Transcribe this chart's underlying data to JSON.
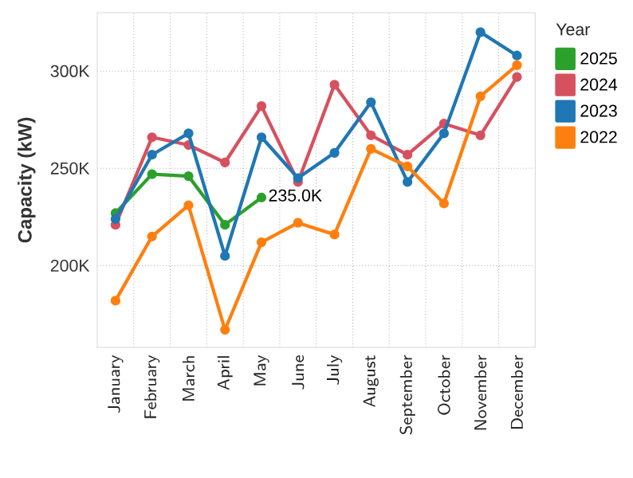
{
  "chart_data": {
    "type": "line",
    "ylabel": "Capacity (kW)",
    "legend_title": "Year",
    "categories": [
      "January",
      "February",
      "March",
      "April",
      "May",
      "June",
      "July",
      "August",
      "September",
      "October",
      "November",
      "December"
    ],
    "series": [
      {
        "name": "2025",
        "color": "#2ca02c",
        "values": [
          227000,
          247000,
          246000,
          221000,
          235000,
          null,
          null,
          null,
          null,
          null,
          null,
          null
        ],
        "value_labels": [
          null,
          null,
          null,
          null,
          "235.0K",
          null,
          null,
          null,
          null,
          null,
          null,
          null
        ]
      },
      {
        "name": "2024",
        "color": "#d6515f",
        "values": [
          221000,
          266000,
          262000,
          253000,
          282000,
          243000,
          293000,
          267000,
          257000,
          273000,
          267000,
          297000
        ]
      },
      {
        "name": "2023",
        "color": "#1f77b4",
        "values": [
          224000,
          257000,
          268000,
          205000,
          266000,
          245000,
          258000,
          284000,
          243000,
          268000,
          320000,
          308000
        ]
      },
      {
        "name": "2022",
        "color": "#ff7f0e",
        "values": [
          182000,
          215000,
          231000,
          167000,
          212000,
          222000,
          216000,
          260000,
          251000,
          232000,
          287000,
          303000
        ]
      }
    ],
    "ylim": [
      158000,
      330000
    ],
    "yticks": [
      {
        "value": 200000,
        "label": "200K"
      },
      {
        "value": 250000,
        "label": "250K"
      },
      {
        "value": 300000,
        "label": "300K"
      }
    ],
    "grid": true,
    "legend": "right",
    "marker": "circle",
    "line_style": "solid"
  }
}
